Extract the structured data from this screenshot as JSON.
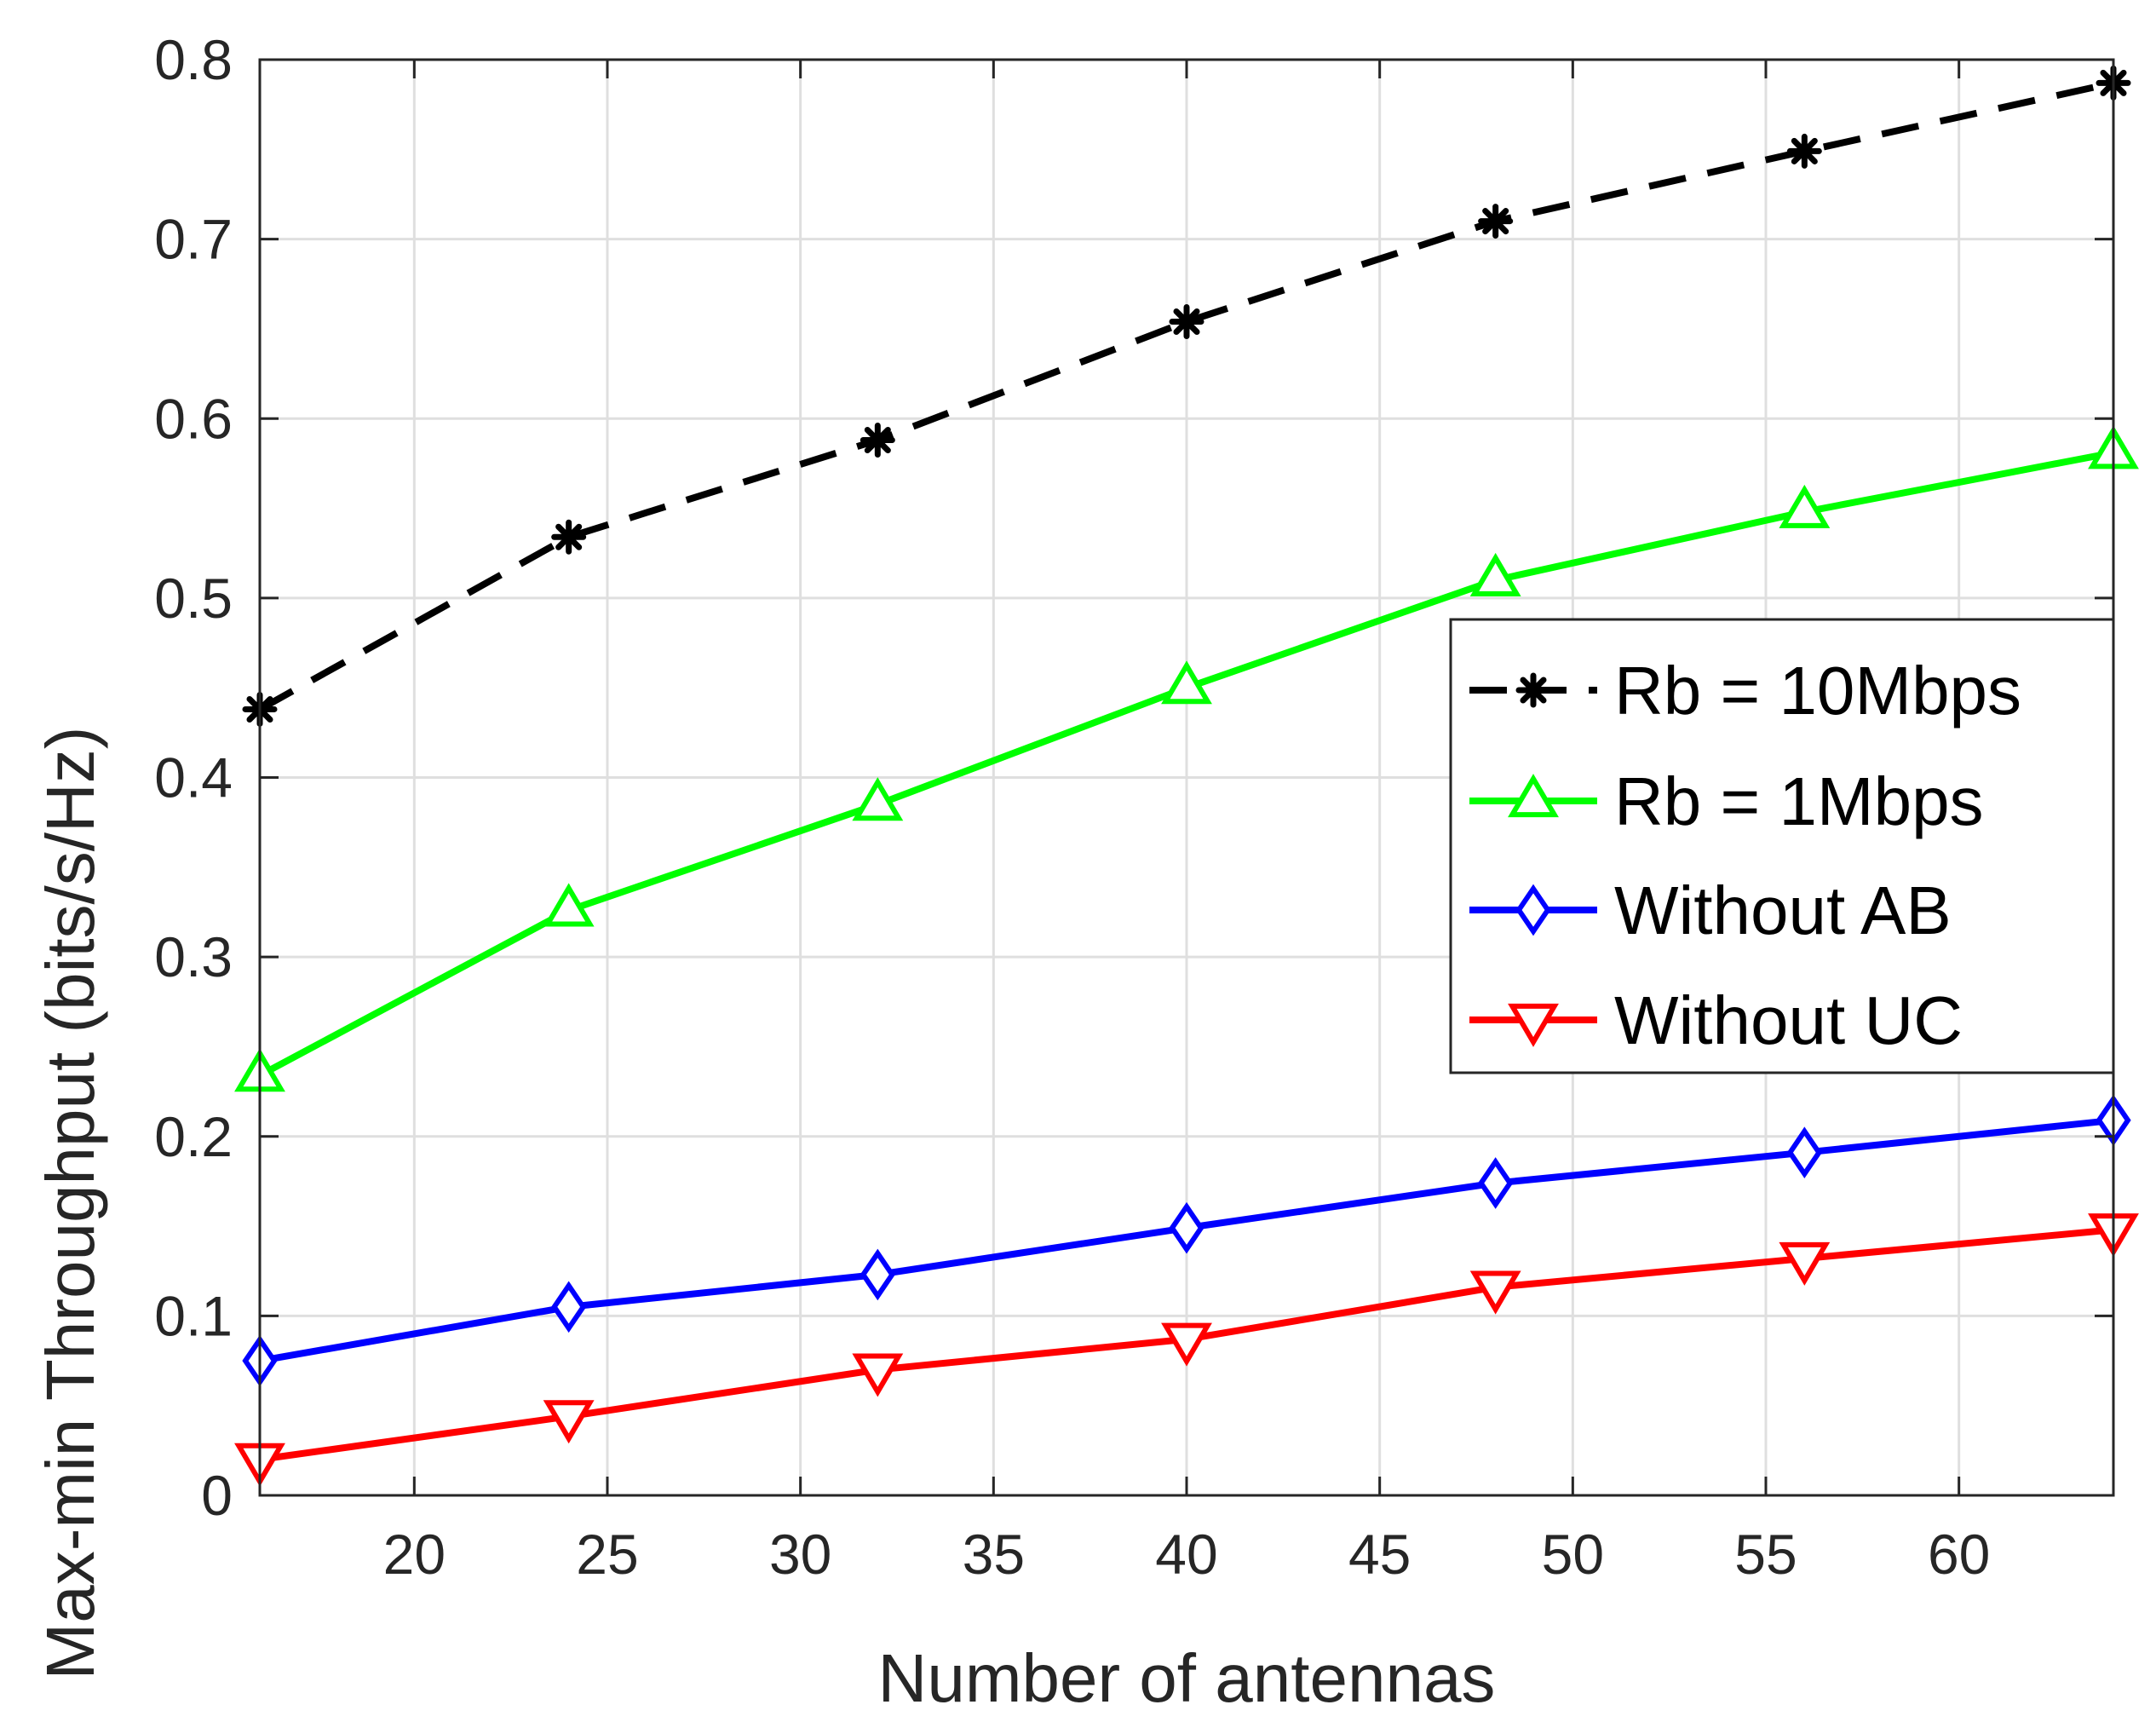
{
  "chart_data": {
    "type": "line",
    "title": "",
    "xlabel": "Number of antennas",
    "ylabel": "Max-min Throughput (bits/s/Hz)",
    "xlim": [
      16,
      64
    ],
    "ylim": [
      0,
      0.8
    ],
    "xticks": [
      20,
      25,
      30,
      35,
      40,
      45,
      50,
      55,
      60
    ],
    "yticks": [
      0,
      0.1,
      0.2,
      0.3,
      0.4,
      0.5,
      0.6,
      0.7,
      0.8
    ],
    "xtick_labels": [
      "20",
      "25",
      "30",
      "35",
      "40",
      "45",
      "50",
      "55",
      "60"
    ],
    "ytick_labels": [
      "0",
      "0.1",
      "0.2",
      "0.3",
      "0.4",
      "0.5",
      "0.6",
      "0.7",
      "0.8"
    ],
    "grid": true,
    "legend_position": "center-right",
    "x": [
      16,
      24,
      32,
      40,
      48,
      56,
      64
    ],
    "series": [
      {
        "name": "Rb = 10Mbps",
        "color": "#000000",
        "dash": "dashed",
        "marker": "asterisk",
        "values": [
          0.438,
          0.534,
          0.588,
          0.654,
          0.71,
          0.749,
          0.787
        ]
      },
      {
        "name": "Rb = 1Mbps",
        "color": "#00ff00",
        "dash": "solid",
        "marker": "triangle-up",
        "values": [
          0.234,
          0.326,
          0.385,
          0.45,
          0.51,
          0.548,
          0.581
        ]
      },
      {
        "name": "Without AB",
        "color": "#0000ff",
        "dash": "solid",
        "marker": "diamond",
        "values": [
          0.075,
          0.105,
          0.123,
          0.149,
          0.174,
          0.191,
          0.209
        ]
      },
      {
        "name": "Without UC",
        "color": "#ff0000",
        "dash": "solid",
        "marker": "triangle-down",
        "values": [
          0.02,
          0.044,
          0.07,
          0.087,
          0.116,
          0.132,
          0.148
        ]
      }
    ]
  }
}
